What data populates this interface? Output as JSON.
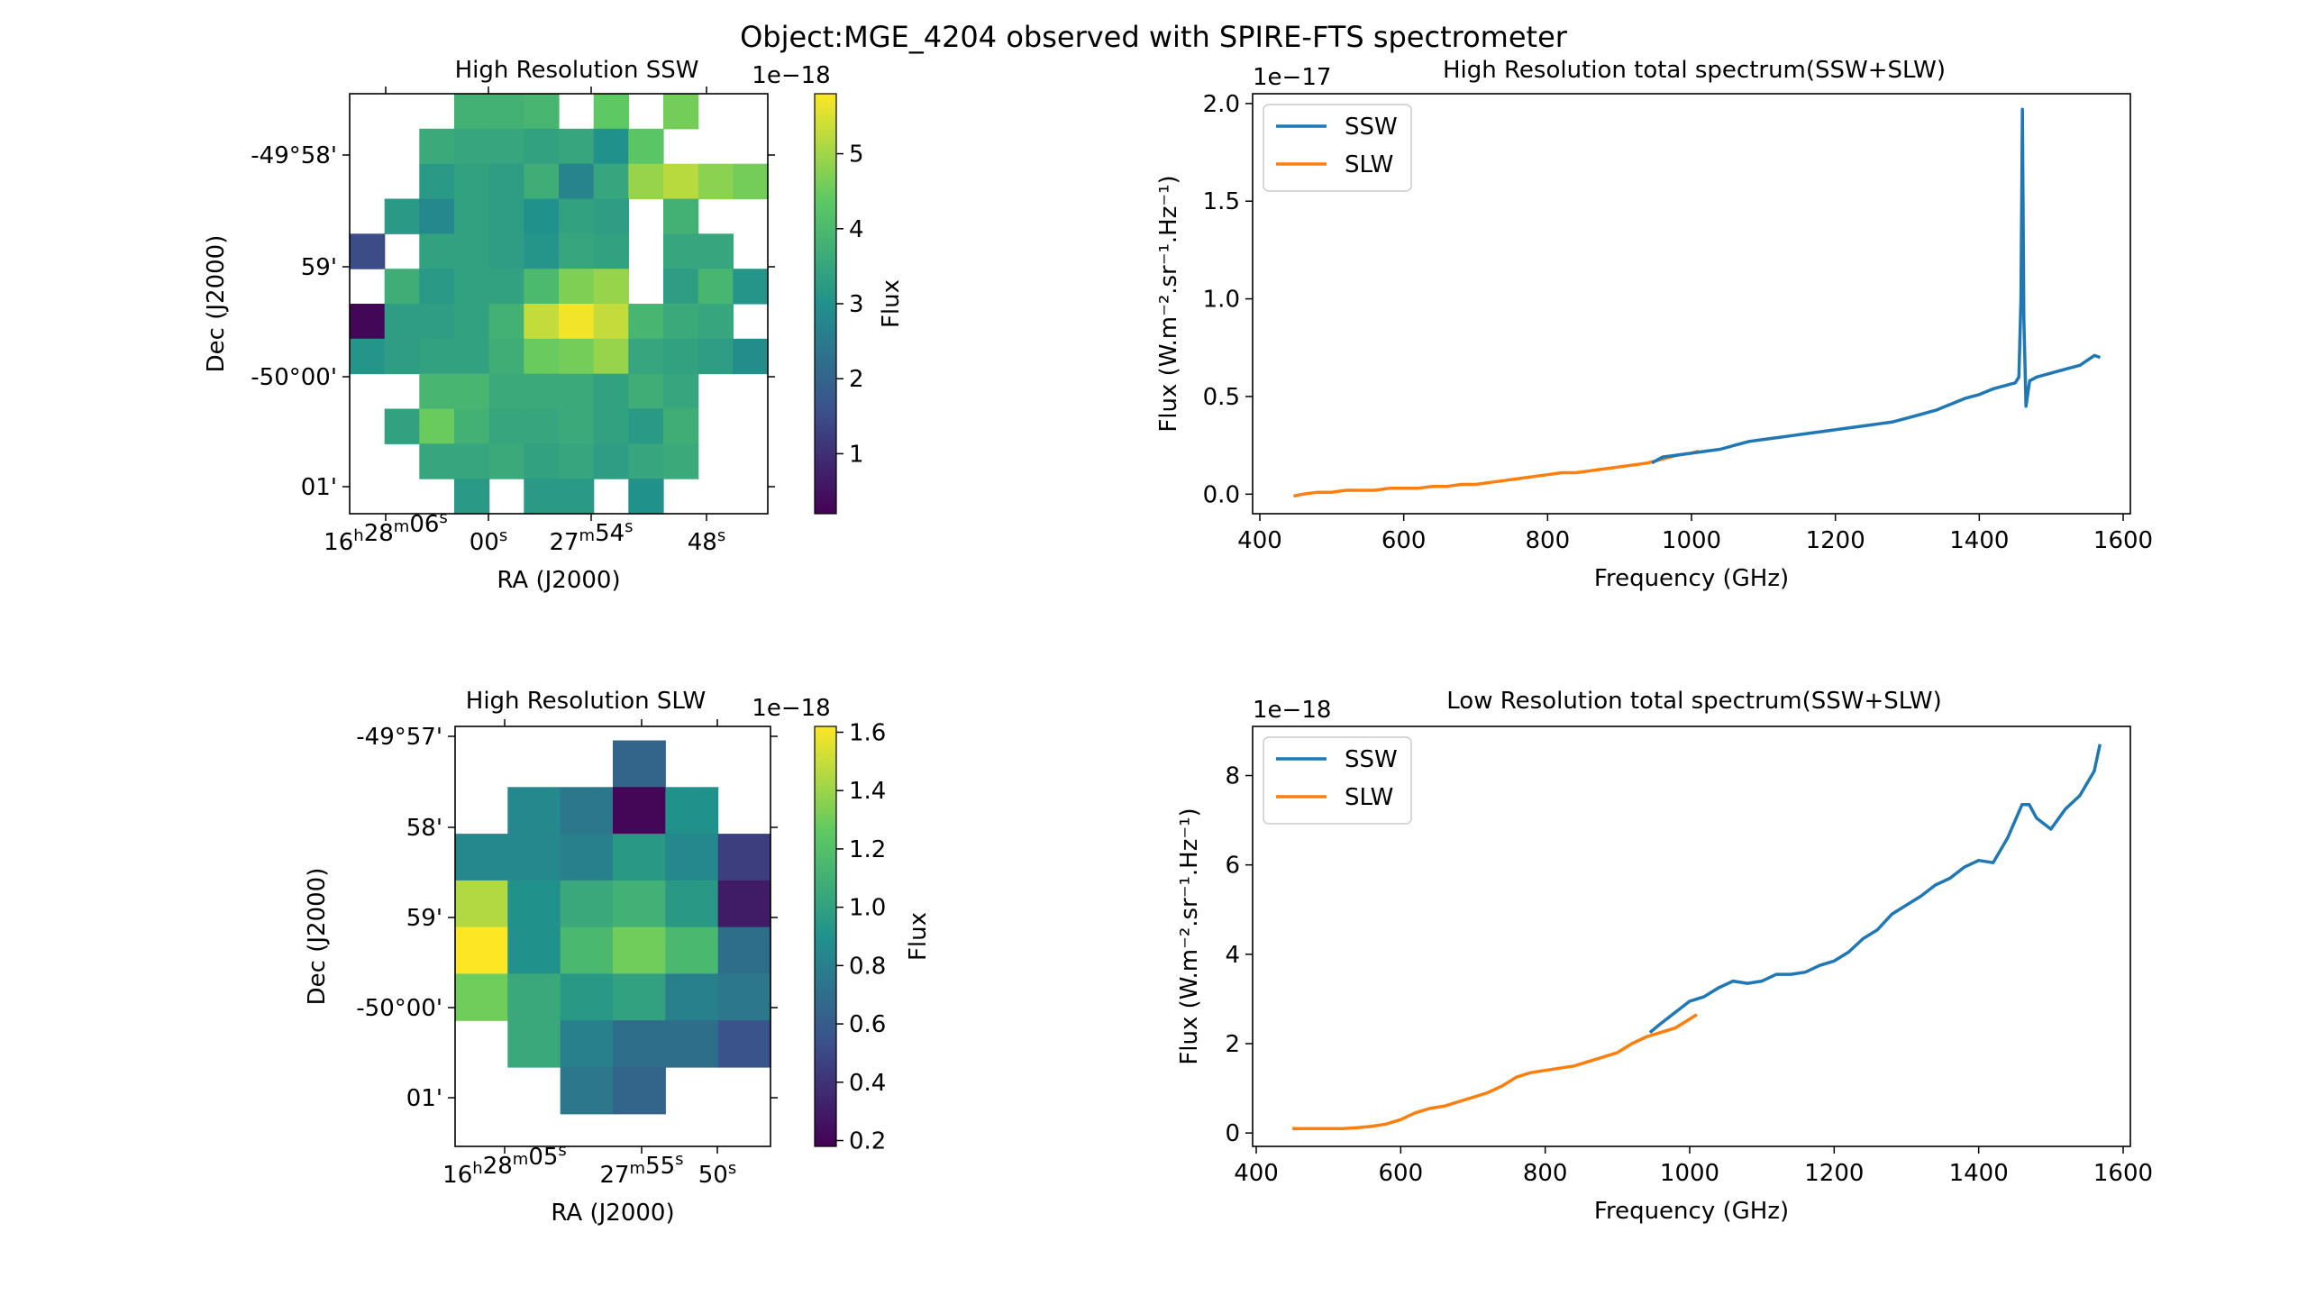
{
  "suptitle": "Object:MGE_4204 observed with SPIRE-FTS spectrometer",
  "chart_data": [
    {
      "type": "heatmap",
      "title": "High Resolution SSW",
      "xlabel": "RA (J2000)",
      "ylabel": "Dec (J2000)",
      "x_ticks": [
        "16h28m06s",
        "00s",
        "27m54s",
        "48s"
      ],
      "y_ticks": [
        "-49°58'",
        "59'",
        "-50°00'",
        "01'"
      ],
      "colorbar": {
        "label": "Flux",
        "offset": "1e−18",
        "ticks": [
          "1",
          "2",
          "3",
          "4",
          "5"
        ],
        "vmin": 0.2,
        "vmax": 5.8,
        "colormap": "viridis"
      },
      "values": [
        [
          null,
          null,
          null,
          3.8,
          3.8,
          3.9,
          null,
          4.4,
          null,
          4.6,
          null
        ],
        [
          null,
          null,
          3.6,
          3.5,
          3.5,
          3.4,
          3.5,
          3.0,
          4.3,
          null,
          null
        ],
        [
          null,
          null,
          3.2,
          3.4,
          3.3,
          3.7,
          2.7,
          3.5,
          4.9,
          5.2,
          4.8,
          4.6
        ],
        [
          null,
          3.2,
          2.8,
          3.4,
          3.3,
          3.0,
          3.4,
          3.3,
          null,
          3.8,
          null
        ],
        [
          1.5,
          null,
          3.4,
          3.4,
          3.3,
          3.1,
          3.5,
          3.4,
          null,
          3.5,
          3.5
        ],
        [
          null,
          3.7,
          3.2,
          3.4,
          3.4,
          4.0,
          4.7,
          4.9,
          null,
          3.3,
          3.9,
          3.1
        ],
        [
          0.3,
          3.3,
          3.3,
          3.4,
          3.8,
          5.3,
          5.7,
          5.3,
          3.9,
          3.6,
          3.5,
          null
        ],
        [
          3.1,
          3.3,
          3.4,
          3.4,
          3.7,
          4.5,
          4.6,
          4.9,
          3.5,
          3.4,
          3.3,
          2.9
        ],
        [
          null,
          null,
          3.9,
          3.9,
          3.6,
          3.6,
          3.6,
          3.4,
          3.7,
          3.5,
          null,
          null
        ],
        [
          null,
          3.4,
          4.5,
          3.8,
          3.5,
          3.5,
          3.6,
          3.4,
          3.2,
          3.7,
          null,
          null
        ],
        [
          null,
          null,
          3.5,
          3.5,
          3.6,
          3.4,
          3.5,
          3.3,
          3.5,
          3.6,
          null,
          null
        ],
        [
          null,
          null,
          null,
          3.2,
          null,
          3.2,
          3.2,
          null,
          3.0,
          null,
          null,
          null
        ]
      ]
    },
    {
      "type": "line",
      "title": "High Resolution total spectrum(SSW+SLW)",
      "xlabel": "Frequency (GHz)",
      "ylabel": "Flux (W.m⁻².sr⁻¹.Hz⁻¹)",
      "y_offset": "1e−17",
      "xlim": [
        390,
        1610
      ],
      "ylim": [
        -0.1,
        2.05
      ],
      "x_ticks": [
        400,
        600,
        800,
        1000,
        1200,
        1400,
        1600
      ],
      "y_ticks": [
        0.0,
        0.5,
        1.0,
        1.5,
        2.0
      ],
      "legend": "top-left",
      "series": [
        {
          "name": "SSW",
          "color": "#1f77b4",
          "x": [
            945,
            960,
            980,
            1000,
            1020,
            1040,
            1060,
            1080,
            1100,
            1120,
            1140,
            1160,
            1180,
            1200,
            1220,
            1240,
            1260,
            1280,
            1300,
            1320,
            1340,
            1360,
            1380,
            1400,
            1420,
            1440,
            1450,
            1455,
            1458,
            1460,
            1462,
            1465,
            1470,
            1480,
            1500,
            1520,
            1540,
            1560,
            1568
          ],
          "y": [
            0.16,
            0.19,
            0.2,
            0.21,
            0.22,
            0.23,
            0.25,
            0.27,
            0.28,
            0.29,
            0.3,
            0.31,
            0.32,
            0.33,
            0.34,
            0.35,
            0.36,
            0.37,
            0.39,
            0.41,
            0.43,
            0.46,
            0.49,
            0.51,
            0.54,
            0.56,
            0.57,
            0.6,
            1.0,
            1.97,
            0.9,
            0.45,
            0.58,
            0.6,
            0.62,
            0.64,
            0.66,
            0.71,
            0.7
          ]
        },
        {
          "name": "SLW",
          "color": "#ff7f0e",
          "x": [
            447,
            460,
            480,
            500,
            520,
            540,
            560,
            580,
            600,
            620,
            640,
            660,
            680,
            700,
            720,
            740,
            760,
            780,
            800,
            820,
            840,
            860,
            880,
            900,
            920,
            940,
            960,
            980,
            1000,
            1010
          ],
          "y": [
            -0.01,
            0.0,
            0.01,
            0.01,
            0.02,
            0.02,
            0.02,
            0.03,
            0.03,
            0.03,
            0.04,
            0.04,
            0.05,
            0.05,
            0.06,
            0.07,
            0.08,
            0.09,
            0.1,
            0.11,
            0.11,
            0.12,
            0.13,
            0.14,
            0.15,
            0.16,
            0.18,
            0.2,
            0.21,
            0.22
          ]
        }
      ]
    },
    {
      "type": "heatmap",
      "title": "High Resolution SLW",
      "xlabel": "RA (J2000)",
      "ylabel": "Dec (J2000)",
      "x_ticks": [
        "16h28m05s",
        "27m55s",
        "50s"
      ],
      "y_ticks": [
        "-49°57'",
        "58'",
        "59'",
        "-50°00'",
        "01'"
      ],
      "colorbar": {
        "label": "Flux",
        "offset": "1e−18",
        "ticks": [
          "0.2",
          "0.4",
          "0.6",
          "0.8",
          "1.0",
          "1.2",
          "1.4",
          "1.6"
        ],
        "vmin": 0.18,
        "vmax": 1.62,
        "colormap": "viridis"
      },
      "values": [
        [
          null,
          null,
          null,
          0.65,
          null,
          null
        ],
        [
          null,
          0.85,
          0.75,
          0.2,
          0.9,
          null
        ],
        [
          0.85,
          0.85,
          0.8,
          0.95,
          0.85,
          0.45
        ],
        [
          1.45,
          0.9,
          1.05,
          1.1,
          0.95,
          0.3
        ],
        [
          1.62,
          0.9,
          1.15,
          1.3,
          1.15,
          0.7
        ],
        [
          1.3,
          1.05,
          0.95,
          1.0,
          0.8,
          0.75
        ],
        [
          null,
          1.05,
          0.8,
          0.7,
          0.7,
          0.55
        ],
        [
          null,
          null,
          0.75,
          0.65,
          null,
          null
        ]
      ]
    },
    {
      "type": "line",
      "title": "Low Resolution total spectrum(SSW+SLW)",
      "xlabel": "Frequency (GHz)",
      "ylabel": "Flux (W.m⁻².sr⁻¹.Hz⁻¹)",
      "y_offset": "1e−18",
      "xlim": [
        395,
        1610
      ],
      "ylim": [
        -0.3,
        9.1
      ],
      "x_ticks": [
        400,
        600,
        800,
        1000,
        1200,
        1400,
        1600
      ],
      "y_ticks": [
        0,
        2,
        4,
        6,
        8
      ],
      "legend": "top-left",
      "series": [
        {
          "name": "SSW",
          "color": "#1f77b4",
          "x": [
            945,
            960,
            980,
            1000,
            1020,
            1040,
            1060,
            1080,
            1100,
            1120,
            1140,
            1160,
            1180,
            1200,
            1220,
            1240,
            1260,
            1280,
            1300,
            1320,
            1340,
            1360,
            1380,
            1400,
            1420,
            1440,
            1460,
            1470,
            1480,
            1500,
            1520,
            1540,
            1560,
            1568
          ],
          "y": [
            2.25,
            2.45,
            2.7,
            2.95,
            3.05,
            3.25,
            3.4,
            3.35,
            3.4,
            3.55,
            3.55,
            3.6,
            3.75,
            3.85,
            4.05,
            4.35,
            4.55,
            4.9,
            5.1,
            5.3,
            5.55,
            5.7,
            5.95,
            6.1,
            6.05,
            6.6,
            7.35,
            7.35,
            7.05,
            6.8,
            7.25,
            7.55,
            8.1,
            8.7
          ]
        },
        {
          "name": "SLW",
          "color": "#ff7f0e",
          "x": [
            450,
            480,
            500,
            520,
            540,
            560,
            580,
            600,
            620,
            640,
            660,
            680,
            700,
            720,
            740,
            760,
            780,
            800,
            820,
            840,
            860,
            880,
            900,
            920,
            940,
            960,
            980,
            1000,
            1010
          ],
          "y": [
            0.1,
            0.1,
            0.1,
            0.1,
            0.12,
            0.15,
            0.2,
            0.3,
            0.45,
            0.55,
            0.6,
            0.7,
            0.8,
            0.9,
            1.05,
            1.25,
            1.35,
            1.4,
            1.45,
            1.5,
            1.6,
            1.7,
            1.8,
            2.0,
            2.15,
            2.25,
            2.35,
            2.55,
            2.65
          ]
        }
      ]
    }
  ]
}
